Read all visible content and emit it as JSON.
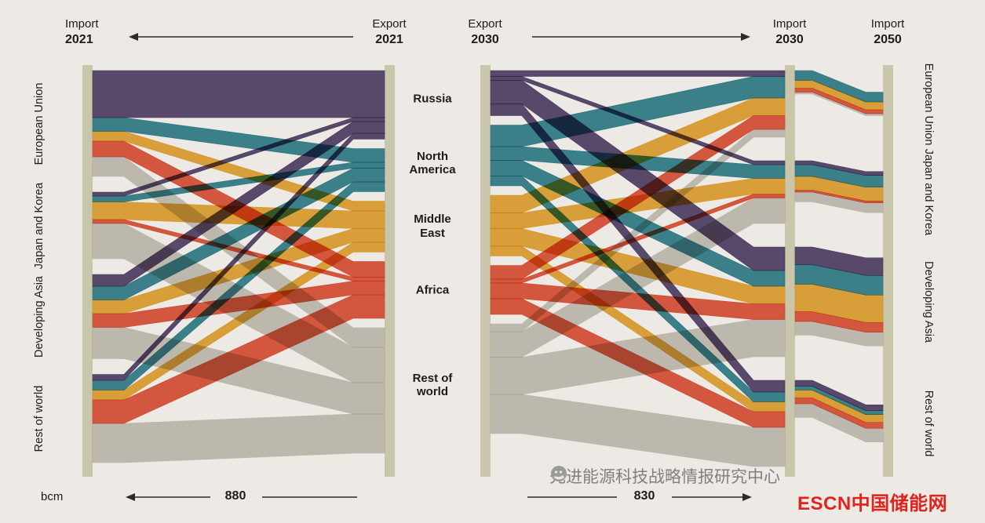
{
  "header": {
    "import_2021": {
      "label": "Import",
      "year": "2021"
    },
    "export_2021": {
      "label": "Export",
      "year": "2021"
    },
    "export_2030": {
      "label": "Export",
      "year": "2030"
    },
    "import_2030": {
      "label": "Import",
      "year": "2030"
    },
    "import_2050": {
      "label": "Import",
      "year": "2050"
    }
  },
  "footer": {
    "unit": "bcm",
    "total_2021": "880",
    "total_2030": "830"
  },
  "watermark": {
    "text": "先进能源科技战略情报研究中心",
    "logo": "ESCN中国储能网",
    "logo_color": "#e0231c"
  },
  "chart_data": {
    "type": "sankey",
    "unit": "bcm",
    "exporters": [
      "Russia",
      "North America",
      "Middle East",
      "Africa",
      "Rest of world"
    ],
    "importers": [
      "European Union",
      "Japan and Korea",
      "Developing Asia",
      "Rest of world"
    ],
    "colors": {
      "Russia": "#4e3c67",
      "North America": "#2a7d8e",
      "Middle East": "#e5a32b",
      "Africa": "#e04b31",
      "Rest of world": "#c7c3ba"
    },
    "column_bar_color": "#cac6ab",
    "totals": {
      "2021": 880,
      "2030": 830
    },
    "flows_2021": [
      {
        "from": "Russia",
        "to": "European Union",
        "value": 120
      },
      {
        "from": "Russia",
        "to": "Japan and Korea",
        "value": 10
      },
      {
        "from": "Russia",
        "to": "Developing Asia",
        "value": 30
      },
      {
        "from": "Russia",
        "to": "Rest of world",
        "value": 15
      },
      {
        "from": "North America",
        "to": "European Union",
        "value": 35
      },
      {
        "from": "North America",
        "to": "Japan and Korea",
        "value": 15
      },
      {
        "from": "North America",
        "to": "Developing Asia",
        "value": 35
      },
      {
        "from": "North America",
        "to": "Rest of world",
        "value": 25
      },
      {
        "from": "Middle East",
        "to": "European Union",
        "value": 25
      },
      {
        "from": "Middle East",
        "to": "Japan and Korea",
        "value": 45
      },
      {
        "from": "Middle East",
        "to": "Developing Asia",
        "value": 35
      },
      {
        "from": "Middle East",
        "to": "Rest of world",
        "value": 25
      },
      {
        "from": "Africa",
        "to": "European Union",
        "value": 40
      },
      {
        "from": "Africa",
        "to": "Japan and Korea",
        "value": 10
      },
      {
        "from": "Africa",
        "to": "Developing Asia",
        "value": 35
      },
      {
        "from": "Africa",
        "to": "Rest of world",
        "value": 60
      },
      {
        "from": "Rest of world",
        "to": "European Union",
        "value": 50
      },
      {
        "from": "Rest of world",
        "to": "Japan and Korea",
        "value": 90
      },
      {
        "from": "Rest of world",
        "to": "Developing Asia",
        "value": 80
      },
      {
        "from": "Rest of world",
        "to": "Rest of world",
        "value": 100
      }
    ],
    "flows_2030": [
      {
        "from": "Russia",
        "to": "European Union",
        "value": 15
      },
      {
        "from": "Russia",
        "to": "Japan and Korea",
        "value": 10
      },
      {
        "from": "Russia",
        "to": "Developing Asia",
        "value": 60
      },
      {
        "from": "Russia",
        "to": "Rest of world",
        "value": 30
      },
      {
        "from": "North America",
        "to": "European Union",
        "value": 55
      },
      {
        "from": "North America",
        "to": "Japan and Korea",
        "value": 35
      },
      {
        "from": "North America",
        "to": "Developing Asia",
        "value": 40
      },
      {
        "from": "North America",
        "to": "Rest of world",
        "value": 25
      },
      {
        "from": "Middle East",
        "to": "European Union",
        "value": 45
      },
      {
        "from": "Middle East",
        "to": "Japan and Korea",
        "value": 40
      },
      {
        "from": "Middle East",
        "to": "Developing Asia",
        "value": 45
      },
      {
        "from": "Middle East",
        "to": "Rest of world",
        "value": 25
      },
      {
        "from": "Africa",
        "to": "European Union",
        "value": 35
      },
      {
        "from": "Africa",
        "to": "Japan and Korea",
        "value": 10
      },
      {
        "from": "Africa",
        "to": "Developing Asia",
        "value": 40
      },
      {
        "from": "Africa",
        "to": "Rest of world",
        "value": 40
      },
      {
        "from": "Rest of world",
        "to": "European Union",
        "value": 20
      },
      {
        "from": "Rest of world",
        "to": "Japan and Korea",
        "value": 65
      },
      {
        "from": "Rest of world",
        "to": "Developing Asia",
        "value": 95
      },
      {
        "from": "Rest of world",
        "to": "Rest of world",
        "value": 100
      }
    ],
    "flows_2050": [
      {
        "exporter": "North America",
        "importer": "European Union",
        "value": 25
      },
      {
        "exporter": "Middle East",
        "importer": "European Union",
        "value": 20
      },
      {
        "exporter": "Africa",
        "importer": "European Union",
        "value": 10
      },
      {
        "exporter": "Rest of world",
        "importer": "European Union",
        "value": 5
      },
      {
        "exporter": "Russia",
        "importer": "Japan and Korea",
        "value": 10
      },
      {
        "exporter": "North America",
        "importer": "Japan and Korea",
        "value": 30
      },
      {
        "exporter": "Middle East",
        "importer": "Japan and Korea",
        "value": 35
      },
      {
        "exporter": "Africa",
        "importer": "Japan and Korea",
        "value": 5
      },
      {
        "exporter": "Rest of world",
        "importer": "Japan and Korea",
        "value": 25
      },
      {
        "exporter": "Russia",
        "importer": "Developing Asia",
        "value": 45
      },
      {
        "exporter": "North America",
        "importer": "Developing Asia",
        "value": 50
      },
      {
        "exporter": "Middle East",
        "importer": "Developing Asia",
        "value": 70
      },
      {
        "exporter": "Africa",
        "importer": "Developing Asia",
        "value": 25
      },
      {
        "exporter": "Rest of world",
        "importer": "Developing Asia",
        "value": 35
      },
      {
        "exporter": "Russia",
        "importer": "Rest of world",
        "value": 15
      },
      {
        "exporter": "North America",
        "importer": "Rest of world",
        "value": 10
      },
      {
        "exporter": "Middle East",
        "importer": "Rest of world",
        "value": 20
      },
      {
        "exporter": "Africa",
        "importer": "Rest of world",
        "value": 15
      },
      {
        "exporter": "Rest of world",
        "importer": "Rest of world",
        "value": 35
      }
    ]
  }
}
